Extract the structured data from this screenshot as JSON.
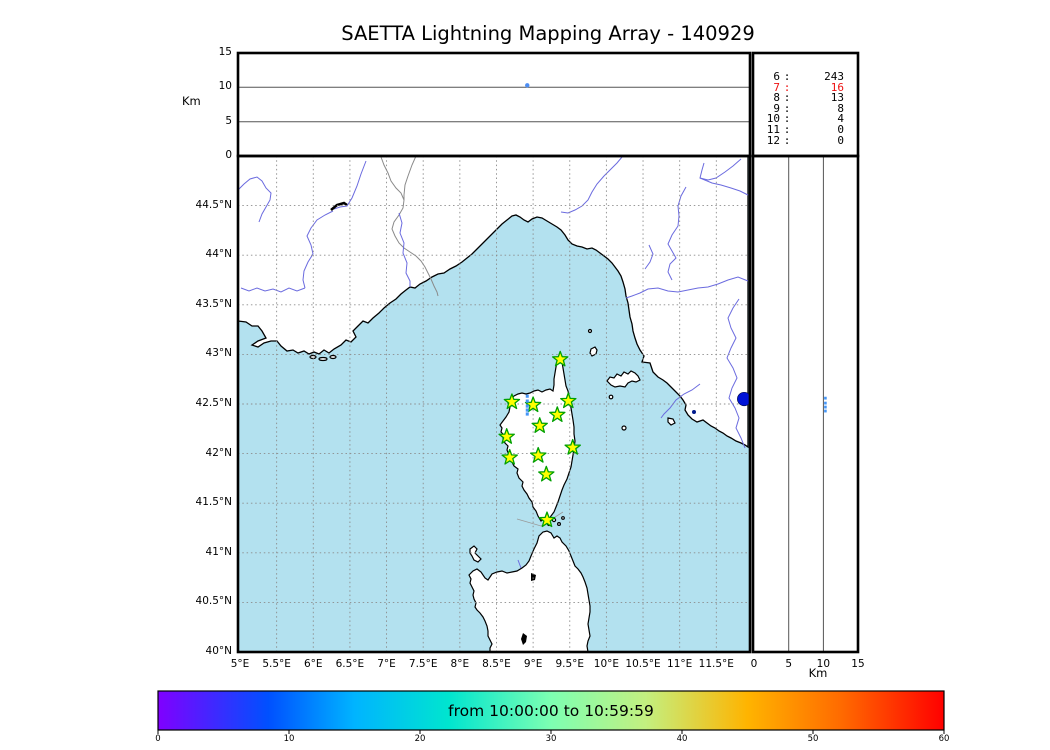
{
  "title": "SAETTA Lightning Mapping Array - 140929",
  "top_panel": {
    "ylabel": "Km",
    "yticks": [
      "0",
      "5",
      "10",
      "15"
    ],
    "point": {
      "lon_e": 8.92,
      "alt_km": 10.3
    },
    "point_color": "#4d8df2"
  },
  "stats_box": {
    "rows": [
      {
        "alt_km": "6",
        "count": "243",
        "highlight": false
      },
      {
        "alt_km": "7",
        "count": "16",
        "highlight": true
      },
      {
        "alt_km": "8",
        "count": "13",
        "highlight": false
      },
      {
        "alt_km": "9",
        "count": "8",
        "highlight": false
      },
      {
        "alt_km": "10",
        "count": "4",
        "highlight": false
      },
      {
        "alt_km": "11",
        "count": "0",
        "highlight": false
      },
      {
        "alt_km": "12",
        "count": "0",
        "highlight": false
      }
    ],
    "highlight_color": "#ee1111",
    "normal_color": "#000000"
  },
  "map": {
    "lat_ticks": [
      "44.5°N",
      "44°N",
      "43.5°N",
      "43°N",
      "42.5°N",
      "42°N",
      "41.5°N",
      "41°N",
      "40.5°N",
      "40°N"
    ],
    "lon_ticks": [
      "5°E",
      "5.5°E",
      "6°E",
      "6.5°E",
      "7°E",
      "7.5°E",
      "8°E",
      "8.5°E",
      "9°E",
      "9.5°E",
      "10°E",
      "10.5°E",
      "11°E",
      "11.5°E"
    ],
    "lat_range_n": [
      40,
      45
    ],
    "lon_range_e": [
      5,
      11.96
    ],
    "sea_color": "#b3e1ef",
    "river_color": "#6b6bdf",
    "border_color": "#8a8a8a",
    "grid_color": "#8c8c8c",
    "station_fill": "#ffff00",
    "station_stroke": "#00a000",
    "flash_color": "#4596f7",
    "edge_dot_color": "#0014d8",
    "stations_lonlat": [
      [
        9.37,
        42.95
      ],
      [
        8.71,
        42.52
      ],
      [
        9.0,
        42.49
      ],
      [
        9.48,
        42.53
      ],
      [
        9.33,
        42.39
      ],
      [
        9.09,
        42.28
      ],
      [
        8.64,
        42.17
      ],
      [
        9.54,
        42.06
      ],
      [
        8.68,
        41.96
      ],
      [
        9.07,
        41.98
      ],
      [
        9.18,
        41.79
      ],
      [
        9.19,
        41.33
      ]
    ],
    "lightning_column": {
      "lon_e": 8.92,
      "lats_n": [
        42.58,
        42.53,
        42.48,
        42.44,
        42.4
      ]
    },
    "edge_dot": {
      "lon_e": 11.88,
      "lat_n": 42.55
    }
  },
  "right_panel": {
    "xlabel": "Km",
    "xticks": [
      "0",
      "5",
      "10",
      "15"
    ],
    "points": {
      "alt_km": 10.3,
      "lats_n": [
        42.56,
        42.51,
        42.47,
        42.43
      ]
    }
  },
  "colorbar": {
    "label": "from 10:00:00 to 10:59:59",
    "ticks": [
      "0",
      "10",
      "20",
      "30",
      "40",
      "50",
      "60"
    ],
    "range_minutes": [
      0,
      60
    ],
    "gradient": [
      "#8000ff",
      "#0050ff",
      "#00b4ff",
      "#00e5cf",
      "#7dffb2",
      "#c3f080",
      "#ffb400",
      "#ff6a00",
      "#ff0000"
    ]
  },
  "chart_data": {
    "type": "scatter",
    "title": "SAETTA Lightning Mapping Array - 140929",
    "subplots": [
      {
        "name": "altitude-vs-longitude",
        "type": "scatter",
        "ylabel": "Km",
        "xlim": [
          5,
          11.96
        ],
        "ylim": [
          0,
          15
        ],
        "yticks": [
          0,
          5,
          10,
          15
        ],
        "grid": "horizontal solid at 5 and 10",
        "points": [
          {
            "lon_e": 8.92,
            "alt_km": 10.3
          }
        ]
      },
      {
        "name": "source-count-by-altitude",
        "type": "table",
        "columns": [
          "altitude_km",
          "source_count"
        ],
        "rows": [
          [
            6,
            243
          ],
          [
            7,
            16
          ],
          [
            8,
            13
          ],
          [
            9,
            8
          ],
          [
            10,
            4
          ],
          [
            11,
            0
          ],
          [
            12,
            0
          ]
        ],
        "highlighted_row": [
          7,
          16
        ]
      },
      {
        "name": "map-plan-view",
        "type": "scatter",
        "xlim": [
          5,
          11.96
        ],
        "ylim": [
          40,
          45
        ],
        "xticks": [
          5,
          5.5,
          6,
          6.5,
          7,
          7.5,
          8,
          8.5,
          9,
          9.5,
          10,
          10.5,
          11,
          11.5
        ],
        "yticks": [
          40,
          40.5,
          41,
          41.5,
          42,
          42.5,
          43,
          43.5,
          44,
          44.5
        ],
        "grid": "dotted 0.5 deg",
        "lma_stations_lonlat": [
          [
            9.37,
            42.95
          ],
          [
            8.71,
            42.52
          ],
          [
            9.0,
            42.49
          ],
          [
            9.48,
            42.53
          ],
          [
            9.33,
            42.39
          ],
          [
            9.09,
            42.28
          ],
          [
            8.64,
            42.17
          ],
          [
            9.54,
            42.06
          ],
          [
            8.68,
            41.96
          ],
          [
            9.07,
            41.98
          ],
          [
            9.18,
            41.79
          ],
          [
            9.19,
            41.33
          ]
        ],
        "lightning_sources": {
          "lon_e": 8.92,
          "lats_n": [
            42.58,
            42.53,
            42.48,
            42.44,
            42.4
          ]
        },
        "edge_marker_lonlat": [
          11.88,
          42.55
        ]
      },
      {
        "name": "altitude-vs-latitude",
        "type": "scatter",
        "xlabel": "Km",
        "xlim": [
          0,
          15
        ],
        "ylim": [
          40,
          45
        ],
        "xticks": [
          0,
          5,
          10,
          15
        ],
        "grid": "vertical solid at 5 and 10",
        "points": {
          "alt_km": 10.3,
          "lats_n": [
            42.56,
            42.51,
            42.47,
            42.43
          ]
        }
      },
      {
        "name": "time-colorbar",
        "type": "colorbar",
        "label": "from 10:00:00 to 10:59:59",
        "ticks": [
          0,
          10,
          20,
          30,
          40,
          50,
          60
        ],
        "units": "minutes",
        "colormap": "rainbow"
      }
    ]
  }
}
